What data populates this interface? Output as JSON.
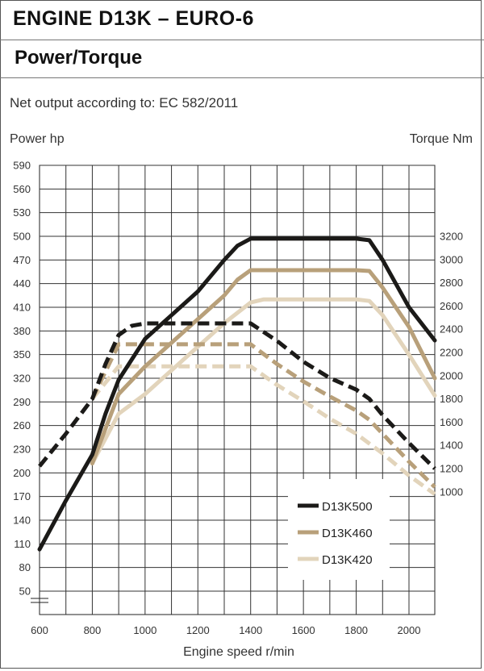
{
  "header": {
    "title": "ENGINE D13K – EURO-6",
    "subtitle": "Power/Torque"
  },
  "note": "Net output according to: EC 582/2011",
  "chart_data": {
    "type": "line",
    "xlabel": "Engine speed r/min",
    "ylabel_left": "Power hp",
    "ylabel_right": "Torque Nm",
    "xlim": [
      600,
      2100
    ],
    "x_ticks": [
      600,
      800,
      1000,
      1200,
      1400,
      1600,
      1800,
      2000
    ],
    "y_left_ticks": [
      50,
      80,
      110,
      140,
      170,
      200,
      230,
      260,
      290,
      320,
      350,
      380,
      410,
      440,
      470,
      500,
      530,
      560,
      590
    ],
    "y_left_range": [
      50,
      590
    ],
    "y_right_ticks": [
      1000,
      1200,
      1400,
      1600,
      1800,
      2000,
      2200,
      2400,
      2600,
      2800,
      3000,
      3200
    ],
    "y_right_note": "torque axis aligned so 1000 Nm = 176 hp and 3200 Nm = 500 hp",
    "grid": true,
    "legend_position": "bottom-right",
    "series": [
      {
        "name": "D13K500",
        "color": "#1b1a18",
        "power": {
          "x": [
            600,
            700,
            800,
            850,
            900,
            1000,
            1100,
            1200,
            1300,
            1350,
            1400,
            1500,
            1600,
            1700,
            1800,
            1850,
            1900,
            2000,
            2100
          ],
          "y": [
            103,
            165,
            223,
            275,
            318,
            370,
            400,
            430,
            470,
            488,
            497,
            497,
            497,
            497,
            497,
            495,
            470,
            410,
            368
          ]
        },
        "torque": {
          "x": [
            600,
            700,
            800,
            850,
            900,
            950,
            1000,
            1100,
            1200,
            1300,
            1400,
            1500,
            1600,
            1700,
            1800,
            1850,
            1900,
            2000,
            2100
          ],
          "y": [
            1220,
            1500,
            1800,
            2100,
            2350,
            2430,
            2450,
            2450,
            2450,
            2450,
            2450,
            2300,
            2120,
            1980,
            1880,
            1800,
            1660,
            1420,
            1200
          ]
        }
      },
      {
        "name": "D13K460",
        "color": "#b8a07a",
        "power": {
          "x": [
            800,
            900,
            1000,
            1100,
            1200,
            1300,
            1350,
            1400,
            1500,
            1600,
            1700,
            1800,
            1850,
            1900,
            2000,
            2100
          ],
          "y": [
            212,
            300,
            335,
            365,
            395,
            425,
            445,
            457,
            457,
            457,
            457,
            457,
            456,
            435,
            385,
            320
          ]
        },
        "torque": {
          "x": [
            800,
            900,
            1000,
            1100,
            1200,
            1300,
            1400,
            1500,
            1600,
            1700,
            1800,
            1850,
            1900,
            2000,
            2100
          ],
          "y": [
            1800,
            2270,
            2270,
            2270,
            2270,
            2270,
            2270,
            2100,
            1950,
            1820,
            1700,
            1620,
            1500,
            1260,
            1040
          ]
        }
      },
      {
        "name": "D13K420",
        "color": "#e2d4bb",
        "power": {
          "x": [
            800,
            900,
            1000,
            1100,
            1200,
            1300,
            1400,
            1450,
            1500,
            1600,
            1700,
            1800,
            1850,
            1900,
            2000,
            2100
          ],
          "y": [
            212,
            275,
            300,
            330,
            360,
            390,
            416,
            420,
            420,
            420,
            420,
            420,
            418,
            400,
            350,
            298
          ]
        },
        "torque": {
          "x": [
            800,
            900,
            1000,
            1100,
            1200,
            1300,
            1400,
            1500,
            1600,
            1700,
            1800,
            1900,
            2000,
            2100
          ],
          "y": [
            1800,
            2080,
            2080,
            2080,
            2080,
            2080,
            2080,
            1920,
            1780,
            1630,
            1500,
            1330,
            1140,
            980
          ]
        }
      }
    ]
  }
}
